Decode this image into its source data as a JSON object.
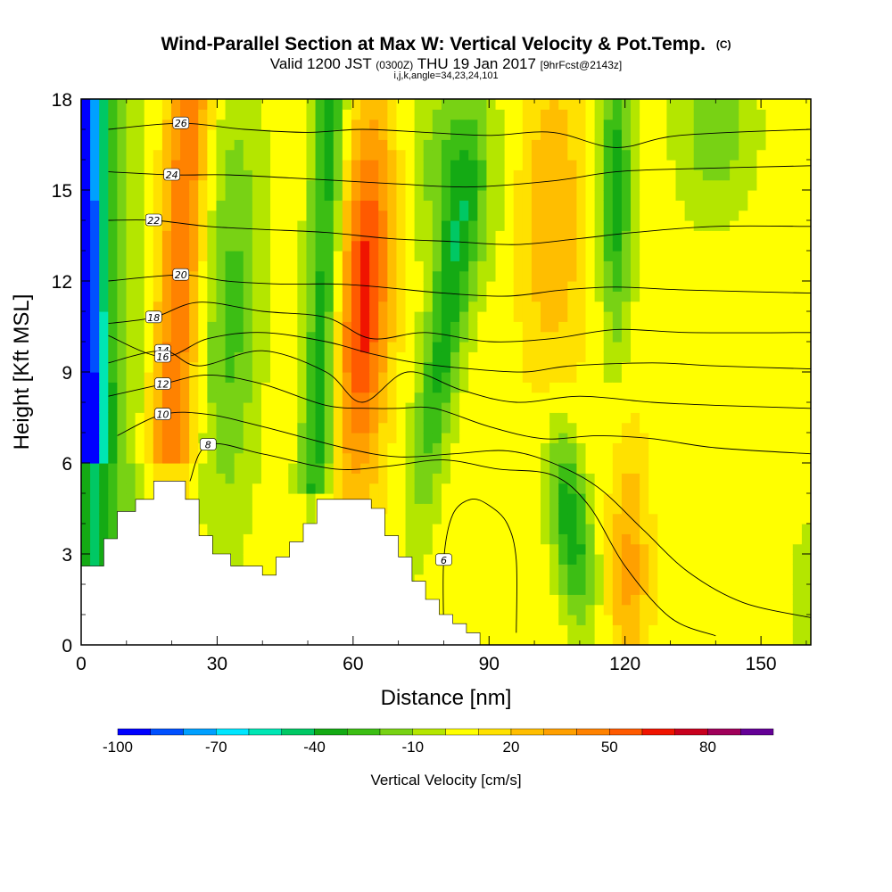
{
  "title": {
    "main": "Wind-Parallel Section at Max W: Vertical Velocity & Pot.Temp.",
    "copyright": "(C)",
    "valid_prefix": "Valid 1200 JST",
    "valid_utc": "(0300Z)",
    "valid_date": "THU 19 Jan 2017",
    "forecast": "[9hrFcst@2143z]",
    "params": "i,j,k,angle=34,23,24,101"
  },
  "chart_data": {
    "type": "heatmap",
    "xlabel": "Distance [nm]",
    "ylabel": "Height [Kft MSL]",
    "xlim": [
      0,
      161
    ],
    "ylim": [
      0,
      18
    ],
    "x_ticks": [
      0,
      30,
      60,
      90,
      120,
      150
    ],
    "y_ticks": [
      0,
      3,
      6,
      9,
      12,
      15,
      18
    ],
    "colorbar": {
      "label": "Vertical Velocity [cm/s]",
      "tick_labels": [
        "-100",
        "-70",
        "-40",
        "-10",
        "20",
        "50",
        "80"
      ],
      "tick_values": [
        -100,
        -70,
        -40,
        -10,
        20,
        50,
        80
      ],
      "levels": [
        -100,
        -90,
        -80,
        -70,
        -60,
        -50,
        -40,
        -30,
        -20,
        -10,
        0,
        10,
        20,
        30,
        40,
        50,
        60,
        70,
        80,
        90,
        100
      ],
      "colors": [
        "#0000ff",
        "#0050ff",
        "#00a0ff",
        "#00e6ff",
        "#00e6b4",
        "#00c864",
        "#14aa14",
        "#3cbe14",
        "#78d214",
        "#b4e600",
        "#ffff00",
        "#ffe100",
        "#ffbe00",
        "#ffa000",
        "#ff8200",
        "#ff5a00",
        "#f01400",
        "#c8001e",
        "#a0005a",
        "#640096"
      ]
    },
    "terrain_kft": [
      [
        0,
        2.6
      ],
      [
        5,
        3.5
      ],
      [
        8,
        4.4
      ],
      [
        12,
        4.8
      ],
      [
        16,
        5.4
      ],
      [
        20,
        5.4
      ],
      [
        23,
        4.8
      ],
      [
        26,
        3.6
      ],
      [
        29,
        3.0
      ],
      [
        33,
        2.6
      ],
      [
        38,
        2.6
      ],
      [
        40,
        2.3
      ],
      [
        43,
        2.9
      ],
      [
        46,
        3.4
      ],
      [
        49,
        4.0
      ],
      [
        52,
        4.8
      ],
      [
        57,
        4.8
      ],
      [
        61,
        4.8
      ],
      [
        64,
        4.5
      ],
      [
        67,
        3.6
      ],
      [
        70,
        2.9
      ],
      [
        73,
        2.1
      ],
      [
        76,
        1.5
      ],
      [
        79,
        1.0
      ],
      [
        82,
        0.7
      ],
      [
        85,
        0.4
      ],
      [
        88,
        0.3
      ]
    ],
    "theta_contours": [
      {
        "label": "6",
        "points": [
          [
            80,
            0.4
          ],
          [
            80,
            2.8
          ],
          [
            82,
            4.3
          ],
          [
            86,
            4.8
          ],
          [
            90,
            4.6
          ],
          [
            94,
            4.0
          ],
          [
            96,
            2.8
          ],
          [
            96,
            0.4
          ]
        ]
      },
      {
        "label": "8",
        "points": [
          [
            24,
            5.4
          ],
          [
            28,
            6.6
          ],
          [
            40,
            6.3
          ],
          [
            56,
            5.8
          ],
          [
            68,
            5.9
          ],
          [
            80,
            6.1
          ],
          [
            92,
            5.8
          ],
          [
            104,
            5.6
          ],
          [
            112,
            4.6
          ],
          [
            120,
            2.6
          ],
          [
            130,
            0.9
          ],
          [
            140,
            0.3
          ]
        ]
      },
      {
        "label": "10",
        "points": [
          [
            8,
            6.9
          ],
          [
            18,
            7.6
          ],
          [
            28,
            7.6
          ],
          [
            40,
            7.2
          ],
          [
            58,
            6.5
          ],
          [
            70,
            6.2
          ],
          [
            82,
            6.3
          ],
          [
            94,
            6.4
          ],
          [
            104,
            6.0
          ],
          [
            114,
            5.2
          ],
          [
            124,
            3.8
          ],
          [
            134,
            2.4
          ],
          [
            146,
            1.4
          ],
          [
            161,
            0.9
          ]
        ]
      },
      {
        "label": "12",
        "points": [
          [
            6,
            8.2
          ],
          [
            18,
            8.6
          ],
          [
            28,
            8.9
          ],
          [
            40,
            8.6
          ],
          [
            54,
            7.9
          ],
          [
            64,
            7.8
          ],
          [
            70,
            7.8
          ],
          [
            78,
            7.8
          ],
          [
            90,
            7.2
          ],
          [
            102,
            6.8
          ],
          [
            114,
            6.9
          ],
          [
            126,
            6.8
          ],
          [
            140,
            6.5
          ],
          [
            161,
            6.3
          ]
        ]
      },
      {
        "label": "14",
        "points": [
          [
            6,
            9.3
          ],
          [
            18,
            9.7
          ],
          [
            26,
            9.2
          ],
          [
            40,
            9.7
          ],
          [
            54,
            9.0
          ],
          [
            62,
            8.0
          ],
          [
            72,
            9.0
          ],
          [
            84,
            8.4
          ],
          [
            96,
            8.0
          ],
          [
            110,
            8.2
          ],
          [
            126,
            8.0
          ],
          [
            140,
            7.9
          ],
          [
            161,
            7.8
          ]
        ]
      },
      {
        "label": "16",
        "points": [
          [
            6,
            10.2
          ],
          [
            18,
            9.5
          ],
          [
            28,
            10.1
          ],
          [
            40,
            10.3
          ],
          [
            54,
            10.0
          ],
          [
            64,
            9.6
          ],
          [
            74,
            9.3
          ],
          [
            86,
            9.1
          ],
          [
            98,
            9.0
          ],
          [
            108,
            9.2
          ],
          [
            126,
            9.3
          ],
          [
            140,
            9.2
          ],
          [
            161,
            9.1
          ]
        ]
      },
      {
        "label": "18",
        "points": [
          [
            6,
            10.6
          ],
          [
            16,
            10.8
          ],
          [
            26,
            11.3
          ],
          [
            40,
            11.0
          ],
          [
            54,
            10.8
          ],
          [
            64,
            10.1
          ],
          [
            76,
            10.3
          ],
          [
            90,
            10.0
          ],
          [
            104,
            10.1
          ],
          [
            118,
            10.4
          ],
          [
            134,
            10.3
          ],
          [
            161,
            10.3
          ]
        ]
      },
      {
        "label": "20",
        "points": [
          [
            6,
            12.0
          ],
          [
            22,
            12.2
          ],
          [
            32,
            12.0
          ],
          [
            44,
            11.9
          ],
          [
            56,
            11.9
          ],
          [
            66,
            11.8
          ],
          [
            80,
            11.6
          ],
          [
            94,
            11.5
          ],
          [
            106,
            11.7
          ],
          [
            118,
            11.8
          ],
          [
            134,
            11.7
          ],
          [
            161,
            11.6
          ]
        ]
      },
      {
        "label": "22",
        "points": [
          [
            6,
            14.0
          ],
          [
            16,
            14.0
          ],
          [
            28,
            13.8
          ],
          [
            40,
            13.7
          ],
          [
            54,
            13.6
          ],
          [
            68,
            13.4
          ],
          [
            82,
            13.3
          ],
          [
            96,
            13.2
          ],
          [
            110,
            13.4
          ],
          [
            122,
            13.6
          ],
          [
            140,
            13.8
          ],
          [
            161,
            13.8
          ]
        ]
      },
      {
        "label": "24",
        "points": [
          [
            6,
            15.6
          ],
          [
            20,
            15.5
          ],
          [
            32,
            15.5
          ],
          [
            46,
            15.4
          ],
          [
            58,
            15.3
          ],
          [
            70,
            15.2
          ],
          [
            86,
            15.1
          ],
          [
            104,
            15.3
          ],
          [
            118,
            15.6
          ],
          [
            134,
            15.7
          ],
          [
            161,
            15.8
          ]
        ]
      },
      {
        "label": "26",
        "points": [
          [
            6,
            17.0
          ],
          [
            22,
            17.2
          ],
          [
            36,
            17.0
          ],
          [
            50,
            16.9
          ],
          [
            62,
            17.0
          ],
          [
            76,
            16.9
          ],
          [
            90,
            16.8
          ],
          [
            104,
            16.9
          ],
          [
            118,
            16.4
          ],
          [
            132,
            16.8
          ],
          [
            161,
            17.0
          ]
        ]
      }
    ]
  }
}
